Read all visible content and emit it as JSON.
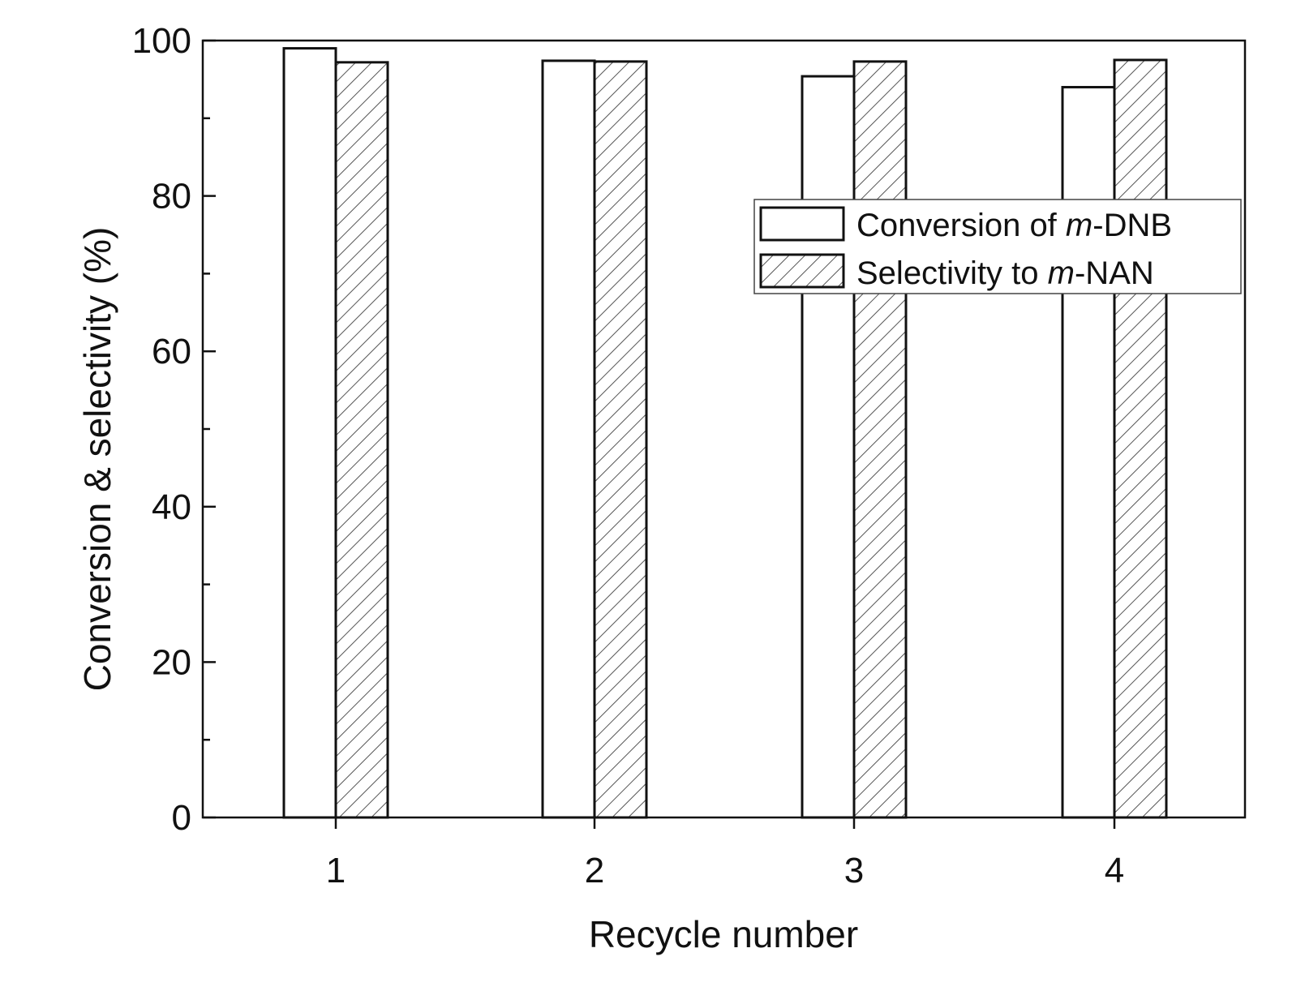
{
  "chart_data": {
    "type": "bar",
    "categories": [
      "1",
      "2",
      "3",
      "4"
    ],
    "series": [
      {
        "name": "Conversion of m-DNB",
        "legend_prefix": "Conversion of ",
        "legend_italic": "m",
        "legend_suffix": "-DNB",
        "fill": "none",
        "values": [
          99.0,
          97.4,
          95.4,
          94.0
        ]
      },
      {
        "name": "Selectivity to m-NAN",
        "legend_prefix": "Selectivity to ",
        "legend_italic": "m",
        "legend_suffix": "-NAN",
        "fill": "hatch",
        "values": [
          97.2,
          97.3,
          97.3,
          97.5
        ]
      }
    ],
    "xlabel": "Recycle number",
    "ylabel": "Conversion & selectivity (%)",
    "ylim": [
      0,
      100
    ],
    "yticks": [
      0,
      20,
      40,
      60,
      80,
      100
    ],
    "grid": false,
    "legend_position": "upper-right",
    "colors": {
      "stroke": "#111111",
      "hatch": "#444444",
      "background": "#ffffff"
    }
  }
}
